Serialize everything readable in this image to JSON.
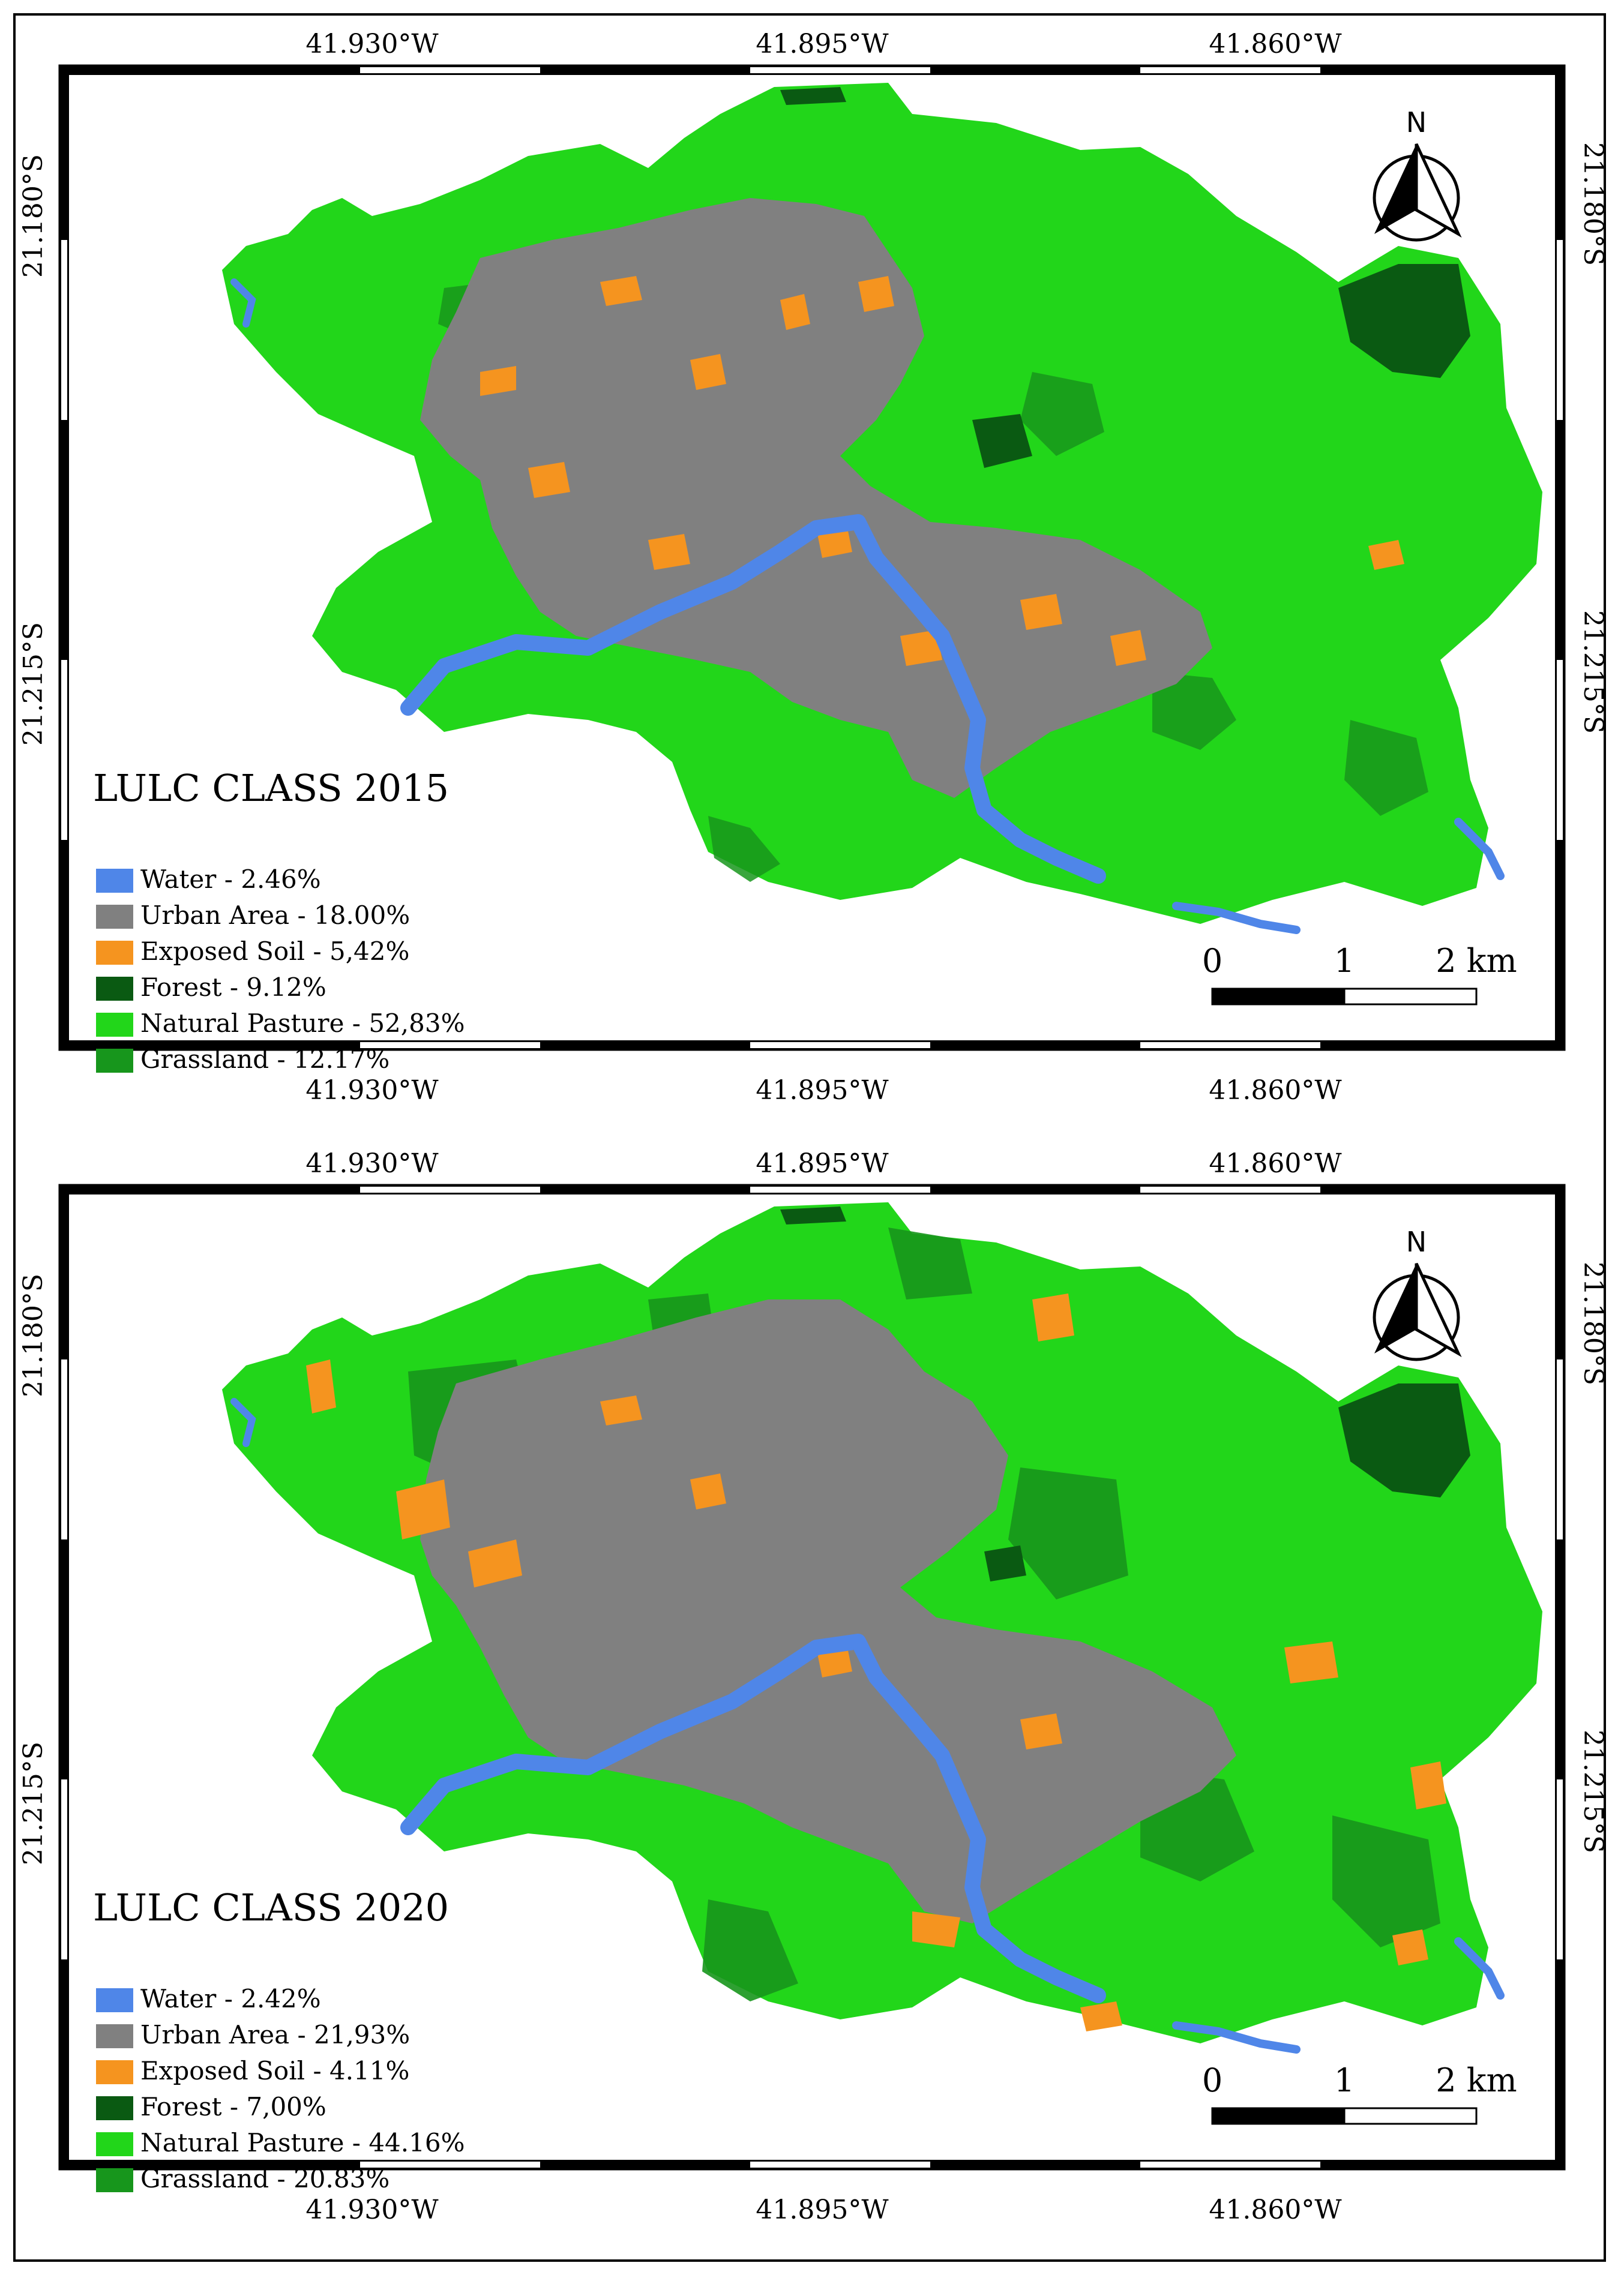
{
  "panels": [
    {
      "id": "2015",
      "title": "LULC CLASS 2015",
      "legend": [
        {
          "label": "Water - 2.46%",
          "color": "#4f86e8"
        },
        {
          "label": "Urban Area - 18.00%",
          "color": "#808080"
        },
        {
          "label": "Exposed Soil - 5,42%",
          "color": "#f5941f"
        },
        {
          "label": "Forest - 9.12%",
          "color": "#0a5a12"
        },
        {
          "label": "Natural Pasture - 52,83%",
          "color": "#22d61a"
        },
        {
          "label": "Grassland - 12.17%",
          "color": "#17961c"
        }
      ]
    },
    {
      "id": "2020",
      "title": "LULC CLASS 2020",
      "legend": [
        {
          "label": "Water - 2.42%",
          "color": "#4f86e8"
        },
        {
          "label": "Urban Area - 21,93%",
          "color": "#808080"
        },
        {
          "label": "Exposed Soil - 4.11%",
          "color": "#f5941f"
        },
        {
          "label": "Forest - 7,00%",
          "color": "#0a5a12"
        },
        {
          "label": "Natural Pasture - 44.16%",
          "color": "#22d61a"
        },
        {
          "label": "Grassland - 20.83%",
          "color": "#17961c"
        }
      ]
    }
  ],
  "longitude_labels": [
    "41.930°W",
    "41.895°W",
    "41.860°W"
  ],
  "latitude_labels": [
    "21.180°S",
    "21.215°S"
  ],
  "scale_bar": {
    "labels": [
      "0",
      "1",
      "2 km"
    ]
  },
  "north_arrow": {
    "label": "N"
  }
}
